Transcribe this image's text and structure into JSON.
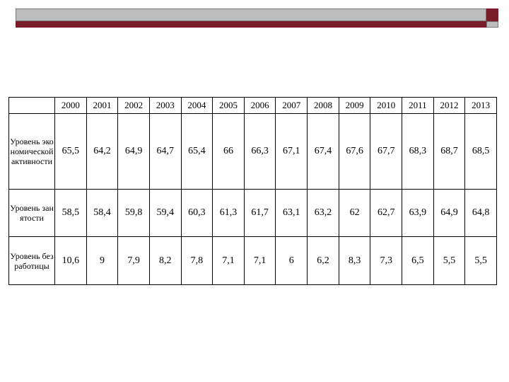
{
  "table": {
    "header": [
      "2000",
      "2001",
      "2002",
      "2003",
      "2004",
      "2005",
      "2006",
      "2007",
      "2008",
      "2009",
      "2010",
      "2011",
      "2012",
      "2013"
    ],
    "rows": [
      {
        "label": "Уровень экономической активности",
        "values": [
          "65,5",
          "64,2",
          "64,9",
          "64,7",
          "65,4",
          "66",
          "66,3",
          "67,1",
          "67,4",
          "67,6",
          "67,7",
          "68,3",
          "68,7",
          "68,5"
        ]
      },
      {
        "label": "Уровень занятости",
        "values": [
          "58,5",
          "58,4",
          "59,8",
          "59,4",
          "60,3",
          "61,3",
          "61,7",
          "63,1",
          "63,2",
          "62",
          "62,7",
          "63,9",
          "64,9",
          "64,8"
        ]
      },
      {
        "label": "Уровень безработицы",
        "values": [
          "10,6",
          "9",
          "7,9",
          "8,2",
          "7,8",
          "7,1",
          "7,1",
          "6",
          "6,2",
          "8,3",
          "7,3",
          "6,5",
          "5,5",
          "5,5"
        ]
      }
    ]
  }
}
